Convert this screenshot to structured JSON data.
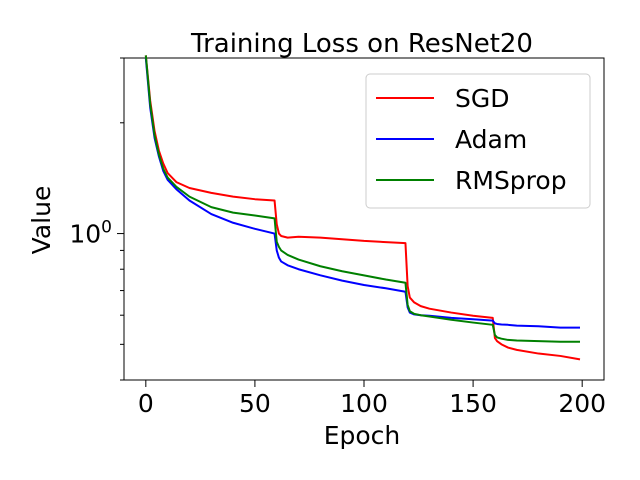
{
  "chart_data": {
    "type": "line",
    "title": "Training Loss on ResNet20",
    "xlabel": "Epoch",
    "ylabel": "Value",
    "xlim": [
      -10,
      210
    ],
    "ylim": [
      0.4,
      3.0
    ],
    "yscale": "log",
    "xticks": [
      0,
      50,
      100,
      150,
      200
    ],
    "xtick_labels": [
      "0",
      "50",
      "100",
      "150",
      "200"
    ],
    "yticks_major": [
      1.0
    ],
    "ytick_major_labels": [
      "10^0"
    ],
    "yticks_minor": [
      0.4,
      0.5,
      0.6,
      0.7,
      0.8,
      0.9,
      2.0,
      3.0
    ],
    "legend_position": "top-right",
    "series": [
      {
        "name": "SGD",
        "color": "#ff0000",
        "x": [
          0,
          2,
          4,
          6,
          8,
          10,
          14,
          20,
          30,
          40,
          50,
          59,
          60,
          61,
          62,
          65,
          70,
          80,
          90,
          100,
          110,
          119,
          120,
          121,
          123,
          126,
          130,
          140,
          150,
          159,
          160,
          161,
          163,
          166,
          170,
          180,
          190,
          199
        ],
        "values": [
          3.05,
          2.3,
          1.9,
          1.68,
          1.55,
          1.46,
          1.38,
          1.33,
          1.29,
          1.26,
          1.24,
          1.23,
          1.06,
          1.0,
          0.985,
          0.975,
          0.98,
          0.975,
          0.965,
          0.955,
          0.948,
          0.942,
          0.72,
          0.67,
          0.65,
          0.635,
          0.625,
          0.61,
          0.598,
          0.59,
          0.52,
          0.51,
          0.5,
          0.49,
          0.483,
          0.472,
          0.465,
          0.455
        ]
      },
      {
        "name": "Adam",
        "color": "#0000ff",
        "x": [
          0,
          2,
          4,
          6,
          8,
          10,
          14,
          20,
          30,
          40,
          50,
          59,
          60,
          61,
          62,
          65,
          70,
          80,
          90,
          100,
          110,
          119,
          120,
          121,
          123,
          126,
          130,
          140,
          150,
          159,
          160,
          161,
          163,
          166,
          170,
          180,
          190,
          199
        ],
        "values": [
          3.0,
          2.2,
          1.82,
          1.62,
          1.48,
          1.4,
          1.32,
          1.23,
          1.13,
          1.07,
          1.03,
          1.0,
          0.9,
          0.86,
          0.84,
          0.82,
          0.8,
          0.77,
          0.745,
          0.725,
          0.71,
          0.695,
          0.63,
          0.61,
          0.603,
          0.6,
          0.598,
          0.59,
          0.585,
          0.58,
          0.57,
          0.568,
          0.566,
          0.565,
          0.562,
          0.56,
          0.555,
          0.555
        ]
      },
      {
        "name": "RMSprop",
        "color": "#008000",
        "x": [
          0,
          2,
          4,
          6,
          8,
          10,
          14,
          20,
          30,
          40,
          50,
          59,
          60,
          61,
          62,
          65,
          70,
          80,
          90,
          100,
          110,
          119,
          120,
          121,
          123,
          126,
          130,
          140,
          150,
          159,
          160,
          161,
          163,
          166,
          170,
          180,
          190,
          199
        ],
        "values": [
          3.05,
          2.25,
          1.85,
          1.64,
          1.5,
          1.42,
          1.34,
          1.26,
          1.18,
          1.14,
          1.12,
          1.1,
          0.95,
          0.92,
          0.9,
          0.875,
          0.85,
          0.815,
          0.79,
          0.77,
          0.75,
          0.735,
          0.64,
          0.615,
          0.605,
          0.6,
          0.595,
          0.583,
          0.573,
          0.565,
          0.53,
          0.522,
          0.518,
          0.514,
          0.512,
          0.51,
          0.508,
          0.508
        ]
      }
    ]
  }
}
